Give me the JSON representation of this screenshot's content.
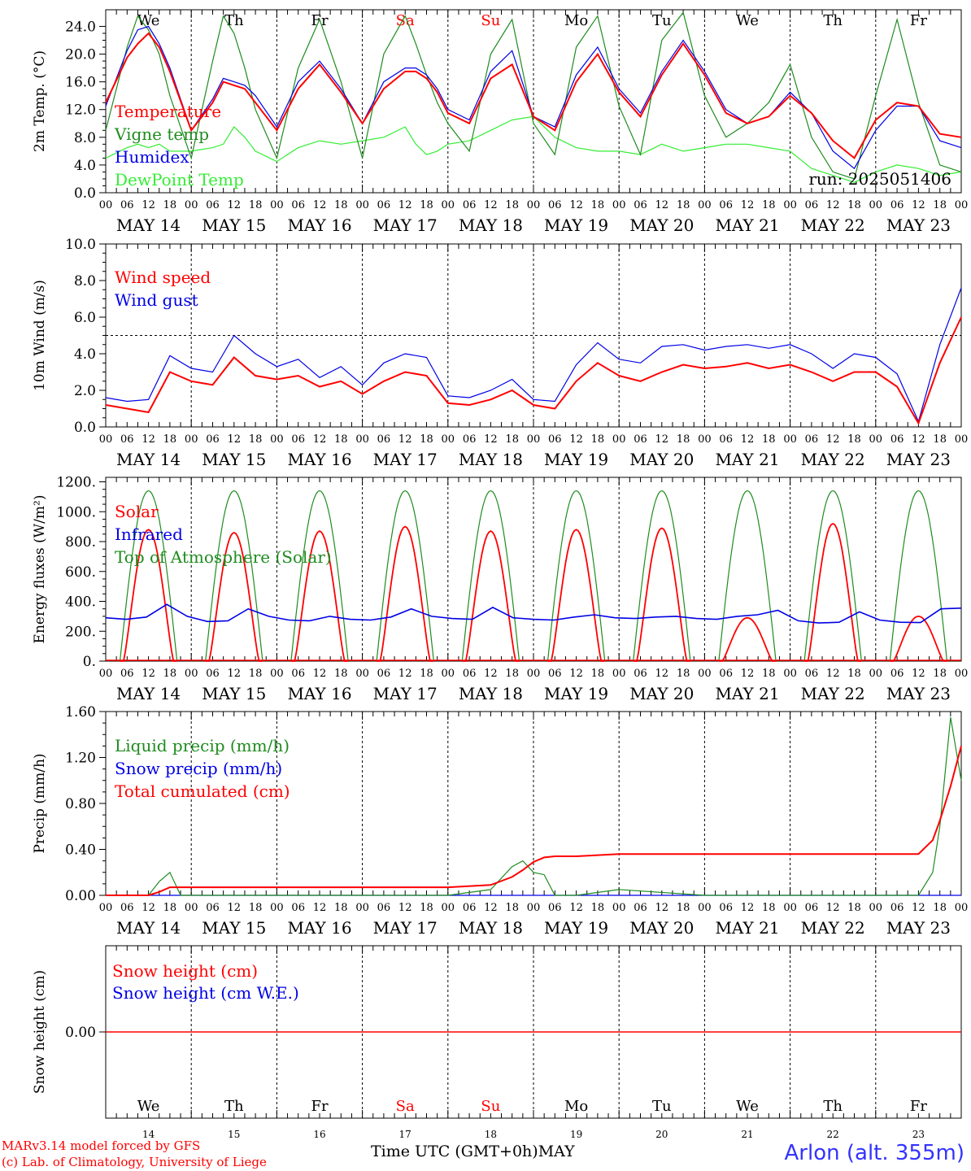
{
  "day_names": [
    "We",
    "Th",
    "Fr",
    "Sa",
    "Su",
    "Mo",
    "Tu",
    "We",
    "Th",
    "Fr"
  ],
  "day_name_colors": [
    "#000000",
    "#000000",
    "#000000",
    "#ff0000",
    "#ff0000",
    "#000000",
    "#000000",
    "#000000",
    "#000000",
    "#000000"
  ],
  "date_labels": [
    "MAY 14",
    "MAY 15",
    "MAY 16",
    "MAY 17",
    "MAY 18",
    "MAY 19",
    "MAY 20",
    "MAY 21",
    "MAY 22",
    "MAY 23"
  ],
  "hour_ticks": [
    "00",
    "06",
    "12",
    "18"
  ],
  "last_hour_tick": "00",
  "day_numbers": [
    "14",
    "15",
    "16",
    "17",
    "18",
    "19",
    "20",
    "21",
    "22",
    "23"
  ],
  "footer": {
    "model_line": "MARv3.14 model forced by GFS",
    "credit_line": "(c) Lab. of Climatology, University of Liege",
    "time_axis": "Time UTC (GMT+0h)",
    "month": "MAY",
    "location": "Arlon (alt. 355m)"
  },
  "colors": {
    "red": "#ff0000",
    "green": "#1e8c1e",
    "blue": "#0000e6",
    "lightgreen": "#33ee33"
  },
  "chart_data": [
    {
      "type": "line",
      "ylabel": "2m Temp. (°C)",
      "ylim": [
        0,
        26.4
      ],
      "yticks": [
        "0.0",
        "4.0",
        "8.0",
        "12.0",
        "16.0",
        "20.0",
        "24.0"
      ],
      "annotation": "run: 2025051406",
      "x_hours": [
        0,
        6,
        9,
        12,
        15,
        18,
        24,
        30,
        33,
        36,
        39,
        42,
        48,
        54,
        60,
        66,
        72,
        78,
        84,
        87,
        90,
        93,
        96,
        102,
        108,
        114,
        120,
        126,
        132,
        138,
        144,
        150,
        156,
        162,
        168,
        174,
        180,
        186,
        192,
        198,
        204,
        210,
        216,
        222,
        228,
        234,
        240
      ],
      "series": [
        {
          "name": "Temperature",
          "color": "red",
          "values": [
            13.0,
            19.5,
            21.5,
            23.0,
            21.0,
            17.5,
            9.0,
            13.0,
            16.0,
            15.5,
            15.0,
            13.0,
            9.0,
            15.0,
            18.5,
            14.5,
            10.0,
            15.0,
            17.5,
            17.5,
            16.5,
            14.5,
            11.5,
            10.0,
            16.5,
            18.5,
            11.0,
            9.0,
            16.0,
            20.0,
            14.5,
            11.0,
            17.0,
            21.5,
            17.0,
            11.5,
            10.0,
            11.0,
            14.0,
            11.5,
            7.5,
            5.0,
            10.5,
            13.0,
            12.5,
            8.5,
            8.0
          ]
        },
        {
          "name": "Vigne temp",
          "color": "green",
          "values": [
            9.0,
            21.0,
            25.5,
            23.5,
            20.0,
            14.0,
            5.0,
            19.0,
            25.5,
            23.0,
            18.0,
            12.0,
            5.0,
            18.0,
            25.0,
            16.0,
            5.0,
            20.0,
            25.5,
            21.5,
            17.0,
            13.0,
            10.0,
            6.0,
            20.0,
            25.0,
            10.0,
            5.5,
            21.0,
            25.5,
            12.5,
            5.5,
            22.0,
            26.0,
            14.0,
            8.0,
            10.0,
            13.0,
            18.5,
            8.0,
            3.0,
            2.0,
            14.0,
            25.0,
            13.0,
            4.0,
            3.0
          ]
        },
        {
          "name": "Humidex",
          "color": "blue",
          "values": [
            12.5,
            20.5,
            23.5,
            24.0,
            21.5,
            18.0,
            9.0,
            13.5,
            16.5,
            16.0,
            15.5,
            14.0,
            9.5,
            16.0,
            19.0,
            15.0,
            10.0,
            16.0,
            18.0,
            18.0,
            17.0,
            15.0,
            12.0,
            10.5,
            17.5,
            20.5,
            11.0,
            9.5,
            17.0,
            21.0,
            15.0,
            11.5,
            17.5,
            22.0,
            17.5,
            12.0,
            10.0,
            11.0,
            14.5,
            11.5,
            6.0,
            3.5,
            9.0,
            12.5,
            12.5,
            7.5,
            6.5
          ]
        },
        {
          "name": "DewPoint Temp",
          "color": "lightgreen",
          "values": [
            5.0,
            6.5,
            7.0,
            6.5,
            7.0,
            6.0,
            6.0,
            6.5,
            7.0,
            9.5,
            8.0,
            6.0,
            4.5,
            6.5,
            7.5,
            7.0,
            7.5,
            8.0,
            9.5,
            7.0,
            5.5,
            6.0,
            7.0,
            7.5,
            9.0,
            10.5,
            11.0,
            8.0,
            6.5,
            6.0,
            6.0,
            5.5,
            7.0,
            6.0,
            6.5,
            7.0,
            7.0,
            6.5,
            6.0,
            3.5,
            2.5,
            1.5,
            3.0,
            4.0,
            3.5,
            2.5,
            3.0
          ]
        }
      ]
    },
    {
      "type": "line",
      "ylabel": "10m Wind (m/s)",
      "ylim": [
        0,
        10
      ],
      "yticks": [
        "0.0",
        "2.0",
        "4.0",
        "6.0",
        "8.0",
        "10.0"
      ],
      "reference_line": 5.0,
      "x_hours": [
        0,
        6,
        12,
        18,
        24,
        30,
        36,
        42,
        48,
        54,
        60,
        66,
        72,
        78,
        84,
        90,
        96,
        102,
        108,
        114,
        120,
        126,
        132,
        138,
        144,
        150,
        156,
        162,
        168,
        174,
        180,
        186,
        192,
        198,
        204,
        210,
        216,
        222,
        228,
        234,
        240
      ],
      "series": [
        {
          "name": "Wind speed",
          "color": "red",
          "values": [
            1.2,
            1.0,
            0.8,
            3.0,
            2.5,
            2.3,
            3.8,
            2.8,
            2.6,
            2.8,
            2.2,
            2.5,
            1.8,
            2.5,
            3.0,
            2.8,
            1.3,
            1.2,
            1.5,
            2.0,
            1.2,
            1.0,
            2.5,
            3.5,
            2.8,
            2.5,
            3.0,
            3.4,
            3.2,
            3.3,
            3.5,
            3.2,
            3.4,
            3.0,
            2.5,
            3.0,
            3.0,
            2.2,
            0.2,
            3.5,
            6.0
          ]
        },
        {
          "name": "Wind gust",
          "color": "blue",
          "values": [
            1.6,
            1.4,
            1.5,
            3.9,
            3.2,
            3.0,
            5.0,
            4.0,
            3.3,
            3.7,
            2.7,
            3.3,
            2.3,
            3.5,
            4.0,
            3.8,
            1.7,
            1.6,
            2.0,
            2.6,
            1.5,
            1.4,
            3.4,
            4.6,
            3.7,
            3.5,
            4.4,
            4.5,
            4.2,
            4.4,
            4.5,
            4.3,
            4.5,
            4.0,
            3.2,
            4.0,
            3.8,
            2.9,
            0.3,
            4.5,
            7.6
          ]
        }
      ]
    },
    {
      "type": "line",
      "ylabel": "Energy fluxes (W/m²)",
      "ylim": [
        0,
        1230
      ],
      "yticks": [
        "0.",
        "200.",
        "400.",
        "600.",
        "800.",
        "1000.",
        "1200."
      ],
      "series": [
        {
          "name": "Solar",
          "color": "red",
          "peaks": [
            880,
            860,
            870,
            900,
            870,
            880,
            890,
            290,
            920,
            300
          ]
        },
        {
          "name": "Infrared",
          "color": "blue",
          "values": [
            290,
            280,
            295,
            380,
            300,
            265,
            270,
            350,
            300,
            275,
            270,
            300,
            280,
            275,
            295,
            350,
            300,
            285,
            280,
            360,
            290,
            280,
            275,
            295,
            310,
            290,
            285,
            295,
            300,
            285,
            280,
            300,
            310,
            340,
            270,
            255,
            260,
            330,
            275,
            260,
            258,
            350,
            355
          ]
        },
        {
          "name": "Top of Atmosphere (Solar)",
          "color": "green",
          "peak": 1140
        }
      ]
    },
    {
      "type": "line",
      "ylabel": "Precip (mm/h)",
      "ylim": [
        0,
        1.6
      ],
      "yticks": [
        "0.00",
        "0.40",
        "0.80",
        "1.20",
        "1.60"
      ],
      "x_hours": [
        0,
        12,
        15,
        18,
        21,
        24,
        48,
        72,
        96,
        108,
        114,
        117,
        120,
        123,
        126,
        132,
        144,
        168,
        192,
        216,
        228,
        232,
        234,
        237,
        240
      ],
      "series": [
        {
          "name": "Liquid precip (mm/h)",
          "color": "green",
          "values": [
            0,
            0,
            0.12,
            0.2,
            0,
            0,
            0,
            0,
            0,
            0.05,
            0.25,
            0.3,
            0.2,
            0.18,
            0,
            0,
            0.05,
            0,
            0,
            0,
            0,
            0.2,
            0.6,
            1.55,
            1.0
          ]
        },
        {
          "name": "Snow precip (mm/h)",
          "color": "blue",
          "values": [
            0,
            0,
            0,
            0,
            0,
            0,
            0,
            0,
            0,
            0,
            0,
            0,
            0,
            0,
            0,
            0,
            0,
            0,
            0,
            0,
            0,
            0,
            0,
            0,
            0
          ]
        },
        {
          "name": "Total cumulated (cm)",
          "color": "red",
          "values": [
            0,
            0,
            0.03,
            0.07,
            0.07,
            0.07,
            0.07,
            0.07,
            0.07,
            0.09,
            0.16,
            0.22,
            0.29,
            0.33,
            0.34,
            0.34,
            0.36,
            0.36,
            0.36,
            0.36,
            0.36,
            0.48,
            0.65,
            0.95,
            1.3
          ]
        }
      ]
    },
    {
      "type": "line",
      "ylabel": "Snow height (cm)",
      "yticks": [
        "0.00"
      ],
      "series": [
        {
          "name": "Snow height (cm)",
          "color": "red",
          "values": [
            0.0,
            0.0
          ]
        },
        {
          "name": "Snow height (cm W.E.)",
          "color": "blue",
          "values": [
            0.0,
            0.0
          ]
        }
      ]
    }
  ]
}
